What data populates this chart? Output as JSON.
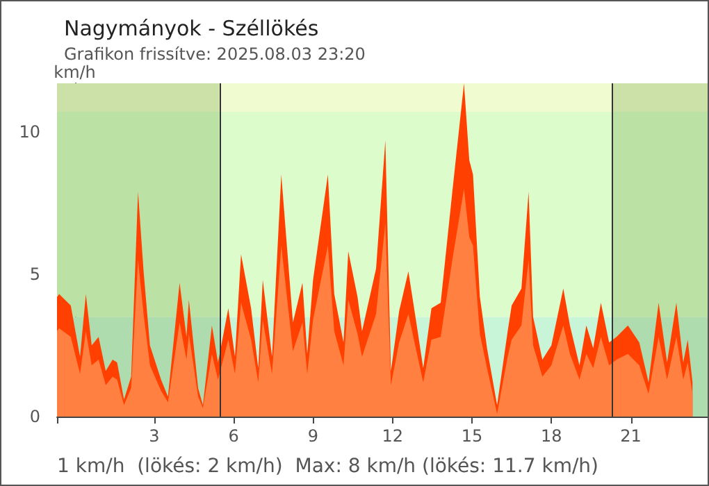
{
  "chart_data": {
    "type": "area",
    "title": "Nagymányok - Széllökés",
    "subtitle": "Grafikon frissítve: 2025.08.03 23:20",
    "ylabel": "km/h",
    "annotations": [
      "1 km/h  (lökés: 2 km/h)  Max: 8 km/h (lökés: 11.7 km/h)"
    ],
    "x": [
      -0.67,
      -0.59,
      -0.15,
      0.2,
      0.42,
      0.64,
      0.9,
      1.17,
      1.43,
      1.6,
      1.86,
      2.13,
      2.39,
      2.6,
      2.84,
      3.26,
      3.52,
      3.96,
      4.22,
      4.31,
      4.66,
      4.84,
      5.18,
      5.41,
      5.8,
      6.05,
      6.28,
      6.66,
      6.93,
      7.1,
      7.45,
      7.8,
      8.24,
      8.6,
      8.78,
      9.0,
      9.56,
      9.8,
      10.15,
      10.33,
      10.68,
      10.85,
      11.38,
      11.73,
      11.94,
      12.25,
      12.6,
      12.95,
      13.16,
      13.47,
      13.82,
      14.26,
      14.7,
      14.9,
      15.04,
      15.3,
      15.57,
      15.95,
      16.35,
      16.5,
      16.87,
      17.14,
      17.31,
      17.66,
      18.0,
      18.45,
      18.7,
      19.06,
      19.32,
      19.58,
      19.87,
      20.18,
      20.46,
      20.89,
      21.32,
      21.67,
      22.05,
      22.37,
      22.72,
      22.98,
      23.15,
      23.33
    ],
    "series": [
      {
        "color": "#ff4000",
        "values": [
          4.2,
          4.3,
          3.9,
          2.1,
          4.3,
          2.5,
          2.8,
          1.6,
          2.0,
          1.9,
          0.6,
          1.4,
          7.9,
          5.1,
          2.5,
          1.3,
          0.7,
          4.7,
          2.8,
          4.1,
          1.0,
          0.4,
          3.2,
          1.9,
          3.8,
          2.1,
          5.7,
          3.8,
          1.7,
          4.8,
          2.1,
          8.5,
          3.3,
          4.7,
          2.2,
          4.8,
          8.5,
          4.3,
          2.6,
          5.8,
          4.2,
          3.0,
          5.2,
          9.7,
          1.6,
          3.7,
          5.1,
          3.0,
          1.7,
          3.8,
          4.0,
          7.9,
          11.7,
          9.0,
          8.5,
          4.2,
          2.4,
          0.4,
          3.0,
          3.9,
          4.5,
          7.9,
          3.5,
          2.0,
          2.5,
          4.5,
          3.2,
          1.8,
          3.2,
          2.4,
          4.0,
          2.6,
          2.8,
          3.2,
          2.6,
          1.2,
          4.0,
          1.9,
          4.0,
          1.9,
          2.7,
          1.2
        ]
      },
      {
        "color": "#ff8040",
        "values": [
          3.0,
          3.1,
          2.8,
          1.5,
          3.0,
          1.8,
          2.0,
          1.1,
          1.4,
          1.3,
          0.4,
          1.0,
          5.5,
          3.6,
          1.8,
          0.9,
          0.5,
          3.3,
          2.0,
          2.9,
          0.7,
          0.3,
          2.2,
          1.3,
          2.7,
          1.5,
          4.0,
          2.7,
          1.2,
          3.4,
          1.5,
          6.0,
          2.3,
          3.3,
          1.5,
          3.4,
          6.0,
          3.0,
          1.8,
          4.1,
          2.9,
          2.1,
          3.6,
          6.8,
          1.1,
          2.6,
          3.6,
          2.1,
          1.2,
          2.7,
          2.8,
          5.5,
          8.0,
          6.3,
          6.0,
          2.9,
          1.7,
          0.1,
          2.1,
          2.7,
          3.2,
          5.5,
          2.5,
          1.4,
          1.8,
          3.2,
          2.2,
          1.3,
          2.2,
          1.7,
          2.8,
          1.8,
          2.0,
          2.2,
          1.8,
          0.8,
          2.8,
          1.3,
          2.8,
          1.3,
          1.9,
          0.8
        ]
      }
    ],
    "xlim": [
      -0.67,
      23.9
    ],
    "xticks": [
      {
        "value": -0.67,
        "label": null
      },
      3,
      6,
      9,
      12,
      15,
      18,
      21
    ],
    "ylim": [
      0,
      11.7
    ],
    "yticks": [
      0,
      5,
      10
    ],
    "bands": [
      {
        "axis": "y",
        "from": 0,
        "to": 3.5,
        "color": "#c8f5d8"
      },
      {
        "axis": "y",
        "from": 3.5,
        "to": 10.7,
        "color": "#dcfccc"
      },
      {
        "axis": "y",
        "from": 10.7,
        "to": 11.7,
        "color": "#f0fcd0"
      },
      {
        "axis": "x",
        "from": -0.67,
        "to": 5.46,
        "color": "#6a9a40"
      },
      {
        "axis": "x",
        "from": 20.28,
        "to": 23.9,
        "color": "#6a9a40"
      }
    ],
    "ref_lines": [
      {
        "axis": "x",
        "value": 5.46,
        "color": "#333333"
      },
      {
        "axis": "x",
        "value": 20.28,
        "color": "#333333"
      }
    ],
    "grid": false
  }
}
